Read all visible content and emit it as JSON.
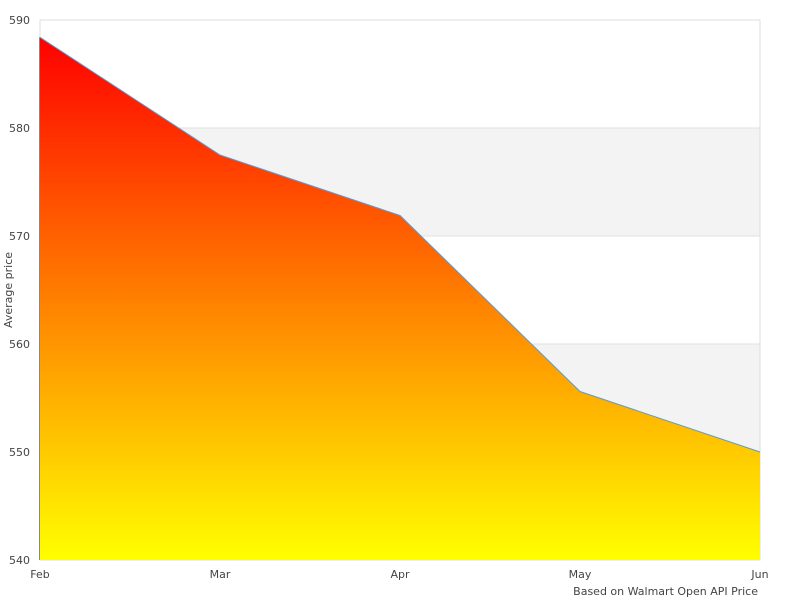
{
  "chart_data": {
    "type": "area",
    "title": "",
    "xlabel": "",
    "ylabel": "Average price",
    "categories": [
      "Feb",
      "Mar",
      "Apr",
      "May",
      "Jun"
    ],
    "series": [
      {
        "values": [
          588.4,
          577.5,
          571.9,
          555.6,
          550
        ]
      }
    ],
    "ylim": [
      540,
      590
    ],
    "yticks": [
      540,
      550,
      560,
      570,
      580,
      590
    ],
    "grid": true,
    "legend": "none",
    "credit": "Based on Walmart Open API Price",
    "colors": {
      "line": "#5b9bd5",
      "fill_top": "#ff0000",
      "fill_bottom": "#ffff00",
      "band": "#f3f3f3",
      "grid": "#e0e0e0"
    }
  }
}
